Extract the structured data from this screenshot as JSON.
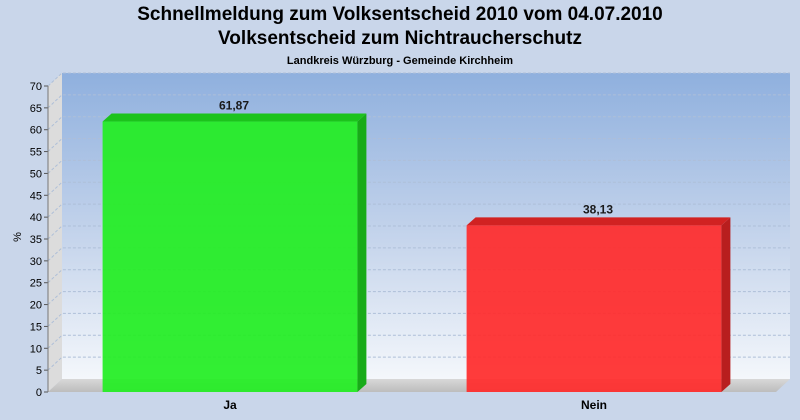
{
  "title_line1": "Schnellmeldung zum Volksentscheid 2010 vom 04.07.2010",
  "title_line2": "Volksentscheid zum Nichtraucherschutz",
  "subtitle": "Landkreis Würzburg - Gemeinde Kirchheim",
  "chart_data": {
    "type": "bar",
    "title": "Schnellmeldung zum Volksentscheid 2010 vom 04.07.2010 / Volksentscheid zum Nichtraucherschutz",
    "subtitle": "Landkreis Würzburg - Gemeinde Kirchheim",
    "categories": [
      "Ja",
      "Nein"
    ],
    "values": [
      61.87,
      38.13
    ],
    "value_labels": [
      "61,87",
      "38,13"
    ],
    "colors": [
      "#22ee22",
      "#ff2a2a"
    ],
    "xlabel": "",
    "ylabel": "%",
    "ylim": [
      0,
      70
    ],
    "yticks": [
      0,
      5,
      10,
      15,
      20,
      25,
      30,
      35,
      40,
      45,
      50,
      55,
      60,
      65,
      70
    ],
    "grid": true,
    "legend": "none"
  }
}
